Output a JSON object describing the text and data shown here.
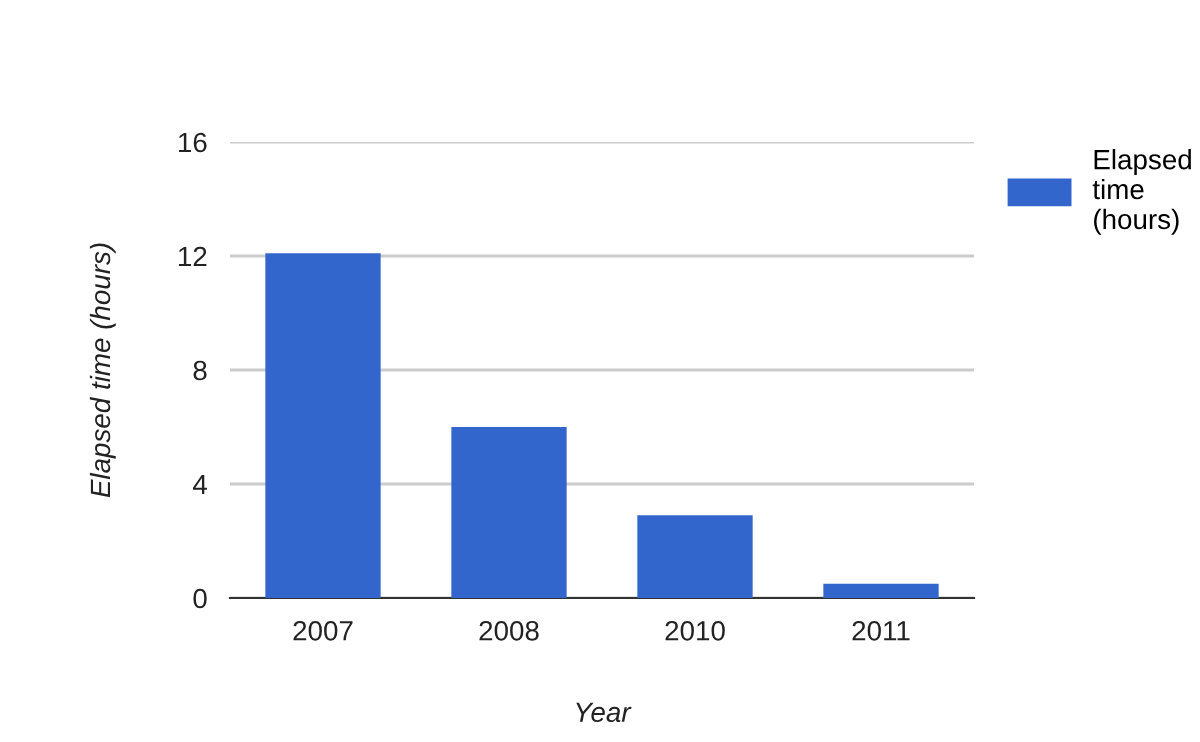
{
  "chart_data": {
    "type": "bar",
    "xlabel": "Year",
    "ylabel": "Elapsed time (hours)",
    "categories": [
      "2007",
      "2008",
      "2010",
      "2011"
    ],
    "series": [
      {
        "name": "Elapsed\ntime\n(hours)",
        "color": "#3366cc",
        "values": [
          12.1,
          6.0,
          2.9,
          0.5
        ]
      }
    ],
    "ylim": [
      0,
      16
    ],
    "yticks": [
      0,
      4,
      8,
      12,
      16
    ],
    "grid": "y",
    "legend": "top right"
  }
}
